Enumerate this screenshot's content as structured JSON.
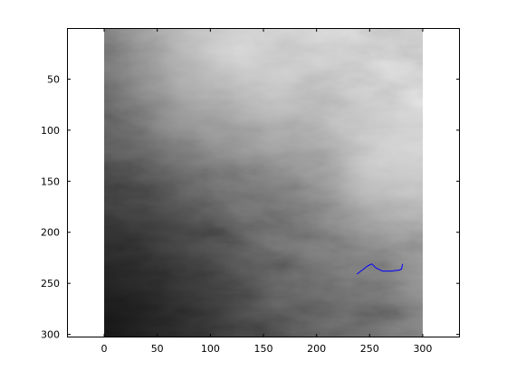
{
  "chart_data": {
    "type": "heatmap",
    "title": "",
    "xlabel": "",
    "ylabel": "",
    "xlim": [
      -35,
      335
    ],
    "ylim": [
      0,
      303
    ],
    "y_reversed": true,
    "image_extent": {
      "x": [
        0,
        300
      ],
      "y": [
        0,
        303
      ]
    },
    "colormap": "gray",
    "grid": false,
    "legend": "none",
    "x_ticks": [
      0,
      50,
      100,
      150,
      200,
      250,
      300
    ],
    "x_tick_labels": [
      "0",
      "50",
      "100",
      "150",
      "200",
      "250",
      "300"
    ],
    "y_ticks": [
      50,
      100,
      150,
      200,
      250,
      300
    ],
    "y_tick_labels": [
      "50",
      "100",
      "150",
      "200",
      "250",
      "300"
    ],
    "series": [
      {
        "type": "line",
        "color": "#0000ff",
        "x": [
          238,
          243,
          248,
          252,
          256,
          262,
          270,
          278,
          280,
          281
        ],
        "y": [
          241,
          237,
          233,
          231,
          235,
          238,
          238,
          237,
          236,
          231
        ]
      }
    ]
  }
}
